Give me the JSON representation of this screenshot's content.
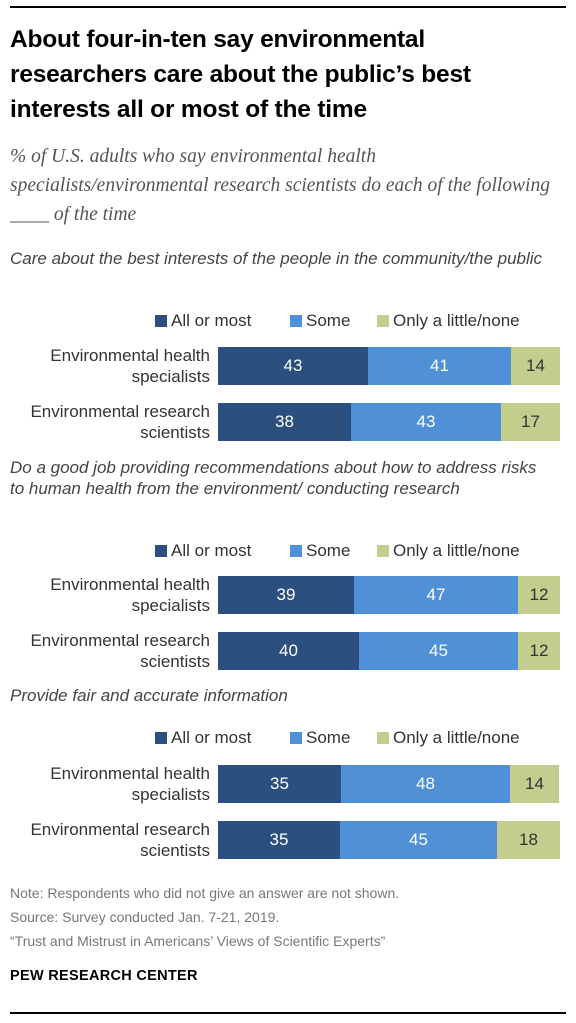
{
  "title": "About four-in-ten say environmental researchers care about the public’s best interests all or most of the time",
  "subtitle": "% of U.S. adults who say environmental health specialists/environmental research scientists do each of the following ____ of the time",
  "colors": {
    "all_or_most": "#2b4f7e",
    "some": "#4f90d6",
    "only_little": "#c3cd8e"
  },
  "chart_data": [
    {
      "type": "bar",
      "orientation": "horizontal-stacked",
      "title": "Care about the best interests of the people in the community/the public",
      "legend_labels": [
        "All or most",
        "Some",
        "Only a little/none"
      ],
      "categories": [
        "Environmental health specialists",
        "Environmental research scientists"
      ],
      "series": [
        {
          "name": "All or most",
          "values": [
            43,
            38
          ]
        },
        {
          "name": "Some",
          "values": [
            41,
            43
          ]
        },
        {
          "name": "Only a little/none",
          "values": [
            14,
            17
          ]
        }
      ]
    },
    {
      "type": "bar",
      "orientation": "horizontal-stacked",
      "title": "Do a good job providing recommendations about how to address risks to human health from the environment/ conducting research",
      "legend_labels": [
        "All or most",
        "Some",
        "Only a little/none"
      ],
      "categories": [
        "Environmental health specialists",
        "Environmental research scientists"
      ],
      "series": [
        {
          "name": "All or most",
          "values": [
            39,
            40
          ]
        },
        {
          "name": "Some",
          "values": [
            47,
            45
          ]
        },
        {
          "name": "Only a little/none",
          "values": [
            12,
            12
          ]
        }
      ]
    },
    {
      "type": "bar",
      "orientation": "horizontal-stacked",
      "title": "Provide fair and accurate information",
      "legend_labels": [
        "All or most",
        "Some",
        "Only a little/none"
      ],
      "categories": [
        "Environmental health specialists",
        "Environmental research scientists"
      ],
      "series": [
        {
          "name": "All or most",
          "values": [
            35,
            35
          ]
        },
        {
          "name": "Some",
          "values": [
            48,
            45
          ]
        },
        {
          "name": "Only a little/none",
          "values": [
            14,
            18
          ]
        }
      ]
    }
  ],
  "footer": {
    "note": "Note: Respondents who did not give an answer are not shown.",
    "source": "Source: Survey conducted Jan. 7-21, 2019.",
    "report": "“Trust and Mistrust in Americans’ Views of Scientific Experts”",
    "brand": "PEW RESEARCH CENTER"
  }
}
